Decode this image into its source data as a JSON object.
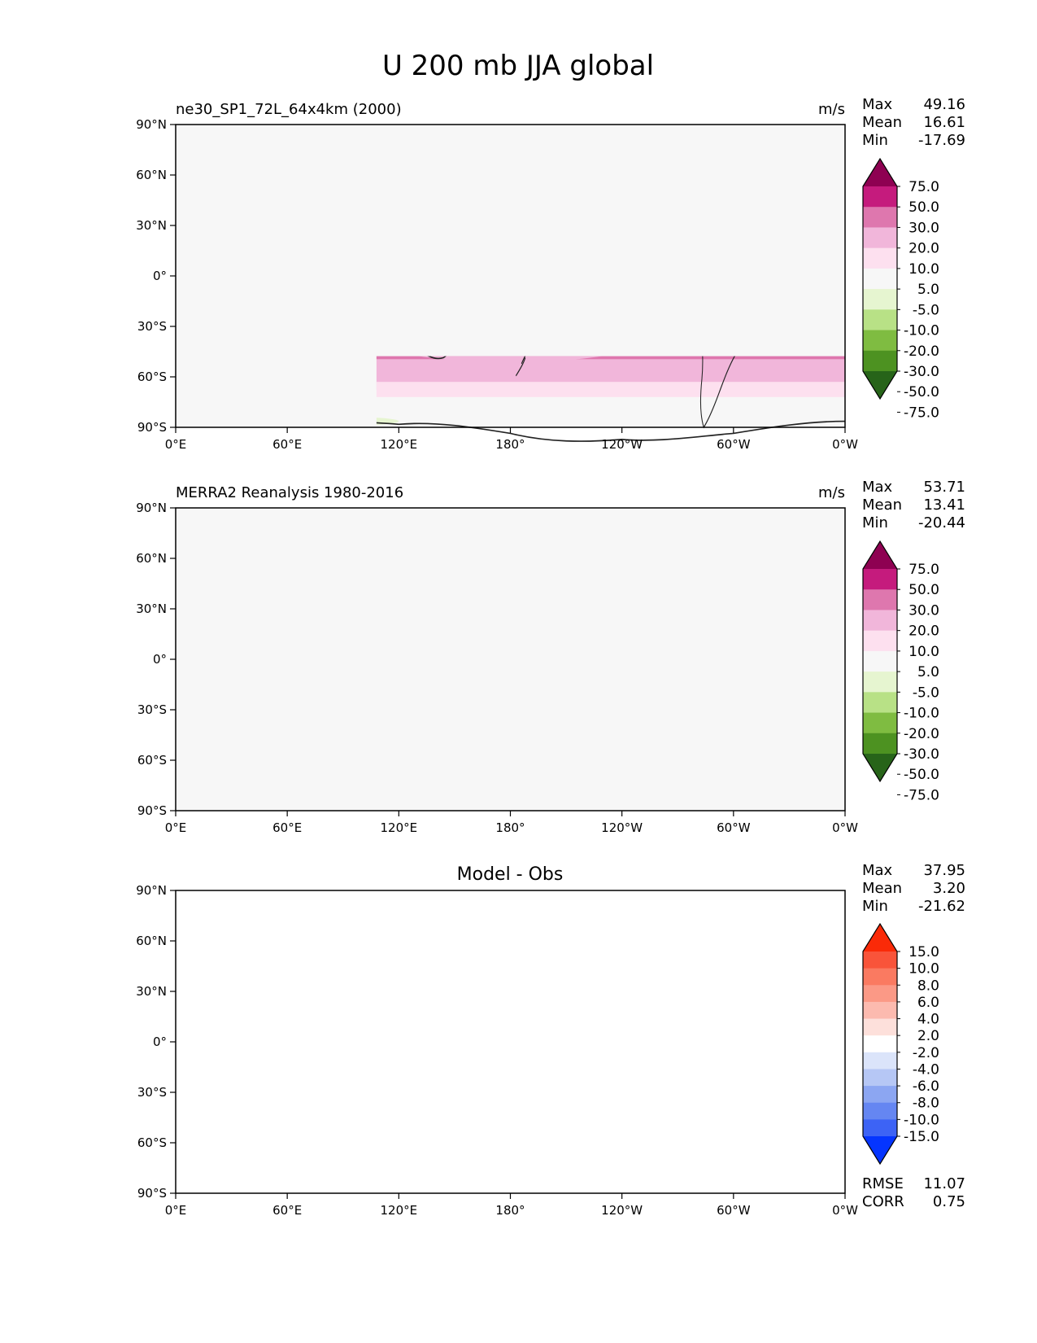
{
  "figure": {
    "title": "U 200 mb JJA global"
  },
  "chart_data": [
    {
      "type": "heatmap",
      "panel_id": "test",
      "left_title": "ne30_SP1_72L_64x4km (2000)",
      "center_title": "",
      "units": "m/s",
      "stats": [
        {
          "label": "Max",
          "value": "49.16"
        },
        {
          "label": "Mean",
          "value": "16.61"
        },
        {
          "label": "Min",
          "value": "-17.69"
        }
      ],
      "colorbar": {
        "colors": [
          "#276419",
          "#4d9221",
          "#7fbc41",
          "#b8e186",
          "#e6f5d0",
          "#f7f7f7",
          "#fde0ef",
          "#f1b6da",
          "#de77ae",
          "#c51b7d",
          "#8e0152"
        ],
        "tick_labels": [
          "75.0",
          "50.0",
          "30.0",
          "20.0",
          "10.0",
          "5.0",
          "-5.0",
          "-10.0",
          "-20.0",
          "-30.0",
          "-50.0",
          "-75.0"
        ]
      },
      "bottom_stats": []
    },
    {
      "type": "heatmap",
      "panel_id": "ref",
      "left_title": "MERRA2 Reanalysis 1980-2016",
      "center_title": "",
      "units": "m/s",
      "stats": [
        {
          "label": "Max",
          "value": "53.71"
        },
        {
          "label": "Mean",
          "value": "13.41"
        },
        {
          "label": "Min",
          "value": "-20.44"
        }
      ],
      "colorbar": {
        "colors": [
          "#276419",
          "#4d9221",
          "#7fbc41",
          "#b8e186",
          "#e6f5d0",
          "#f7f7f7",
          "#fde0ef",
          "#f1b6da",
          "#de77ae",
          "#c51b7d",
          "#8e0152"
        ],
        "tick_labels": [
          "75.0",
          "50.0",
          "30.0",
          "20.0",
          "10.0",
          "5.0",
          "-5.0",
          "-10.0",
          "-20.0",
          "-30.0",
          "-50.0",
          "-75.0"
        ]
      },
      "bottom_stats": []
    },
    {
      "type": "heatmap",
      "panel_id": "diff",
      "left_title": "",
      "center_title": "Model - Obs",
      "units": "",
      "stats": [
        {
          "label": "Max",
          "value": "37.95"
        },
        {
          "label": "Mean",
          "value": "3.20"
        },
        {
          "label": "Min",
          "value": "-21.62"
        }
      ],
      "colorbar": {
        "colors": [
          "#0535ff",
          "#3d63f5",
          "#6586f2",
          "#8ca6f2",
          "#b6c7f5",
          "#dbe4fa",
          "#ffffff",
          "#fde0db",
          "#fcbaaf",
          "#fb9986",
          "#fa7a61",
          "#f9543a",
          "#fa2a08"
        ],
        "tick_labels": [
          "15.0",
          "10.0",
          "8.0",
          "6.0",
          "4.0",
          "2.0",
          "-2.0",
          "-4.0",
          "-6.0",
          "-8.0",
          "-10.0",
          "-15.0"
        ]
      },
      "bottom_stats": [
        {
          "label": "RMSE",
          "value": "11.07"
        },
        {
          "label": "CORR",
          "value": "0.75"
        }
      ]
    }
  ],
  "axes": {
    "x_ticks": [
      "0°E",
      "60°E",
      "120°E",
      "180°",
      "120°W",
      "60°W",
      "0°W"
    ],
    "y_ticks": [
      "90°N",
      "60°N",
      "30°N",
      "0°",
      "30°S",
      "60°S",
      "90°S"
    ]
  }
}
